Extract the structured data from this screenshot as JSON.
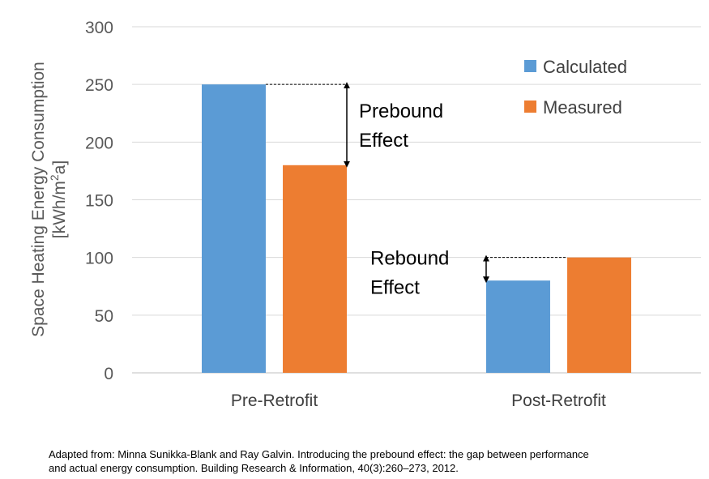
{
  "chart_data": {
    "type": "bar",
    "categories": [
      "Pre-Retrofit",
      "Post-Retrofit"
    ],
    "series": [
      {
        "name": "Calculated",
        "values": [
          250,
          80
        ],
        "color": "#5B9BD5"
      },
      {
        "name": "Measured",
        "values": [
          180,
          100
        ],
        "color": "#ED7D31"
      }
    ],
    "ylabel_line1": "Space Heating Energy Consumption",
    "ylabel_line2_pre": "[kWh/m",
    "ylabel_line2_sup": "2",
    "ylabel_line2_post": "a]",
    "ylim": [
      0,
      300
    ],
    "yticks": [
      0,
      50,
      100,
      150,
      200,
      250,
      300
    ],
    "grid": true,
    "legend_position": "top-right",
    "annotations": [
      {
        "lines": [
          "Prebound",
          "Effect"
        ],
        "category": "Pre-Retrofit",
        "from": 250,
        "to": 180
      },
      {
        "lines": [
          "Rebound",
          "Effect"
        ],
        "category": "Post-Retrofit",
        "from": 100,
        "to": 80
      }
    ]
  },
  "source": {
    "line1": "Adapted from: Minna Sunikka-Blank and Ray Galvin. Introducing the prebound effect: the gap between performance",
    "line2": "and actual energy consumption. Building Research & Information, 40(3):260–273, 2012."
  }
}
